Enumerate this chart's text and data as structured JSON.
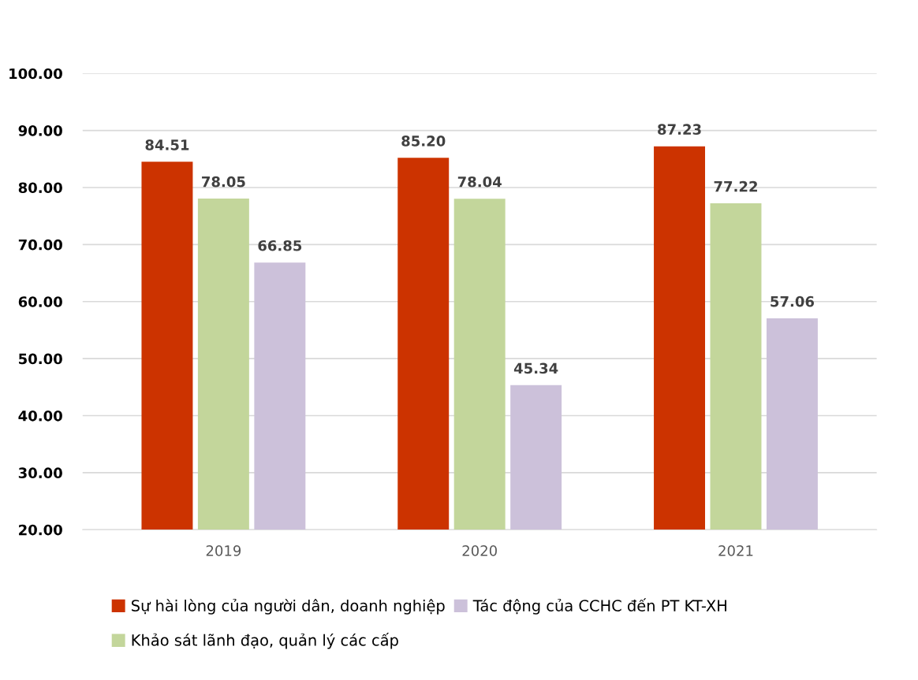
{
  "chart_data": {
    "type": "bar",
    "categories": [
      "2019",
      "2020",
      "2021"
    ],
    "series": [
      {
        "name": "Sự hài lòng của người dân, doanh nghiệp",
        "color": "#cc3300",
        "values": [
          84.51,
          85.2,
          87.23
        ],
        "value_labels": [
          "84.51",
          "85.20",
          "87.23"
        ]
      },
      {
        "name": "Khảo sát lãnh đạo, quản lý các cấp",
        "color": "#c3d69b",
        "values": [
          78.05,
          78.04,
          77.22
        ],
        "value_labels": [
          "78.05",
          "78.04",
          "77.22"
        ]
      },
      {
        "name": "Tác động của CCHC đến PT KT-XH",
        "color": "#ccc1da",
        "values": [
          66.85,
          45.34,
          57.06
        ],
        "value_labels": [
          "66.85",
          "45.34",
          "57.06"
        ]
      }
    ],
    "ylim": [
      20,
      100
    ],
    "yticks": [
      {
        "value": 20,
        "label": "20.00"
      },
      {
        "value": 30,
        "label": "30.00"
      },
      {
        "value": 40,
        "label": "40.00"
      },
      {
        "value": 50,
        "label": "50.00"
      },
      {
        "value": 60,
        "label": "60.00"
      },
      {
        "value": 70,
        "label": "70.00"
      },
      {
        "value": 80,
        "label": "80.00"
      },
      {
        "value": 90,
        "label": "90.00"
      },
      {
        "value": 100,
        "label": "100.00"
      }
    ],
    "grid": "y",
    "legend": "bottom"
  }
}
